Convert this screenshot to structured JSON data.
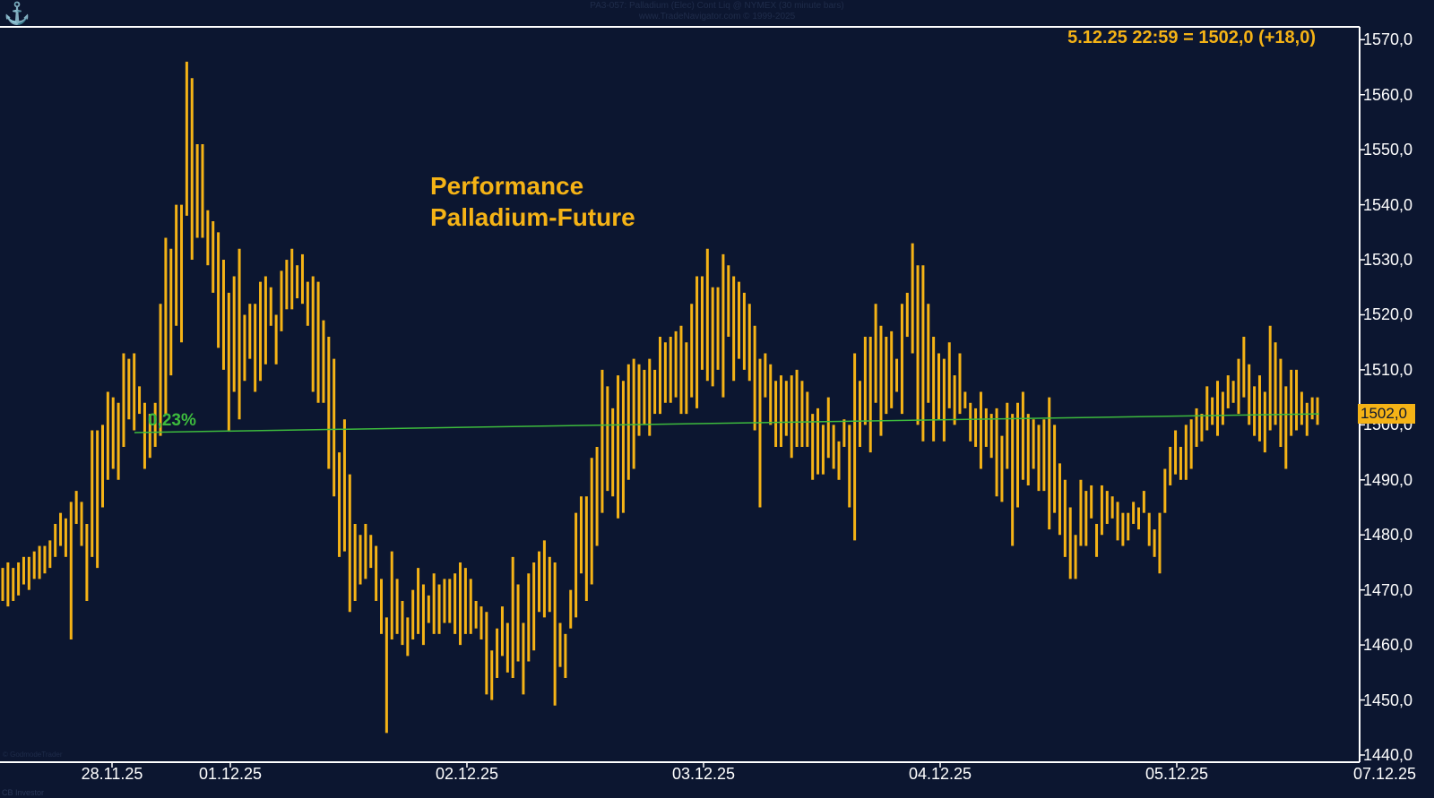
{
  "header": {
    "line1": "PA3-057:  Palladium (Elec) Cont Liq @ NYMEX  (30 minute bars)",
    "line2": "www.TradeNavigator.com © 1999-2025"
  },
  "overlay": {
    "last_price_text": "5.12.25 22:59 = 1502,0 (+18,0)",
    "title_line1": "Performance",
    "title_line2": "Palladium-Future",
    "performance_label": "0,23%",
    "last_tag": "1502,0"
  },
  "footer": {
    "copyright": "© GodmodeTrader",
    "brand": "CB Investor"
  },
  "colors": {
    "background": "#0c1630",
    "bars": "#f5b316",
    "trend": "#3dbb3d",
    "axis": "#ffffff"
  },
  "icons": {
    "logo": "anchor-icon"
  },
  "chart_data": {
    "type": "ohlc",
    "series": "Palladium (Elec) Cont Liq @ NYMEX",
    "interval": "30 minute bars",
    "ylim": [
      1440,
      1572
    ],
    "y_ticks": [
      "1440,0",
      "1450,0",
      "1460,0",
      "1470,0",
      "1480,0",
      "1490,0",
      "1500,0",
      "1510,0",
      "1520,0",
      "1530,0",
      "1540,0",
      "1550,0",
      "1560,0",
      "1570,0"
    ],
    "x_ticks": [
      "28.11.25",
      "01.12.25",
      "02.12.25",
      "03.12.25",
      "04.12.25",
      "05.12.25",
      "07.12.25"
    ],
    "grid": false,
    "performance_line": {
      "from_price": 1498.6,
      "to_price": 1502.0,
      "label": "0,23%"
    },
    "bar_high_low": [
      [
        1468,
        1474
      ],
      [
        1467,
        1475
      ],
      [
        1468,
        1474
      ],
      [
        1469,
        1475
      ],
      [
        1471,
        1476
      ],
      [
        1470,
        1476
      ],
      [
        1472,
        1477
      ],
      [
        1472,
        1478
      ],
      [
        1473,
        1478
      ],
      [
        1474,
        1479
      ],
      [
        1476,
        1482
      ],
      [
        1478,
        1484
      ],
      [
        1476,
        1483
      ],
      [
        1461,
        1486
      ],
      [
        1482,
        1488
      ],
      [
        1478,
        1486
      ],
      [
        1468,
        1482
      ],
      [
        1476,
        1499
      ],
      [
        1474,
        1499
      ],
      [
        1485,
        1500
      ],
      [
        1490,
        1506
      ],
      [
        1492,
        1505
      ],
      [
        1490,
        1504
      ],
      [
        1496,
        1513
      ],
      [
        1501,
        1512
      ],
      [
        1499,
        1513
      ],
      [
        1502,
        1507
      ],
      [
        1492,
        1504
      ],
      [
        1494,
        1502
      ],
      [
        1496,
        1504
      ],
      [
        1498,
        1522
      ],
      [
        1502,
        1534
      ],
      [
        1509,
        1532
      ],
      [
        1518,
        1540
      ],
      [
        1515,
        1540
      ],
      [
        1538,
        1566
      ],
      [
        1530,
        1563
      ],
      [
        1534,
        1551
      ],
      [
        1534,
        1551
      ],
      [
        1529,
        1539
      ],
      [
        1524,
        1537
      ],
      [
        1514,
        1535
      ],
      [
        1510,
        1530
      ],
      [
        1499,
        1524
      ],
      [
        1506,
        1527
      ],
      [
        1501,
        1532
      ],
      [
        1508,
        1520
      ],
      [
        1512,
        1522
      ],
      [
        1506,
        1522
      ],
      [
        1508,
        1526
      ],
      [
        1511,
        1527
      ],
      [
        1518,
        1525
      ],
      [
        1511,
        1520
      ],
      [
        1517,
        1528
      ],
      [
        1521,
        1530
      ],
      [
        1521,
        1532
      ],
      [
        1523,
        1529
      ],
      [
        1522,
        1531
      ],
      [
        1518,
        1526
      ],
      [
        1506,
        1527
      ],
      [
        1504,
        1526
      ],
      [
        1504,
        1519
      ],
      [
        1492,
        1516
      ],
      [
        1487,
        1512
      ],
      [
        1476,
        1495
      ],
      [
        1477,
        1501
      ],
      [
        1466,
        1491
      ],
      [
        1468,
        1482
      ],
      [
        1471,
        1480
      ],
      [
        1472,
        1482
      ],
      [
        1474,
        1480
      ],
      [
        1468,
        1478
      ],
      [
        1462,
        1472
      ],
      [
        1444,
        1465
      ],
      [
        1461,
        1477
      ],
      [
        1462,
        1472
      ],
      [
        1460,
        1468
      ],
      [
        1458,
        1465
      ],
      [
        1461,
        1470
      ],
      [
        1462,
        1474
      ],
      [
        1460,
        1471
      ],
      [
        1464,
        1469
      ],
      [
        1462,
        1473
      ],
      [
        1462,
        1471
      ],
      [
        1464,
        1472
      ],
      [
        1464,
        1472
      ],
      [
        1462,
        1473
      ],
      [
        1460,
        1475
      ],
      [
        1462,
        1474
      ],
      [
        1462,
        1472
      ],
      [
        1463,
        1468
      ],
      [
        1461,
        1467
      ],
      [
        1451,
        1466
      ],
      [
        1450,
        1459
      ],
      [
        1454,
        1463
      ],
      [
        1458,
        1467
      ],
      [
        1455,
        1464
      ],
      [
        1454,
        1476
      ],
      [
        1457,
        1471
      ],
      [
        1451,
        1464
      ],
      [
        1457,
        1473
      ],
      [
        1459,
        1475
      ],
      [
        1466,
        1477
      ],
      [
        1465,
        1479
      ],
      [
        1466,
        1476
      ],
      [
        1449,
        1475
      ],
      [
        1456,
        1464
      ],
      [
        1454,
        1462
      ],
      [
        1463,
        1470
      ],
      [
        1465,
        1484
      ],
      [
        1473,
        1487
      ],
      [
        1468,
        1487
      ],
      [
        1471,
        1494
      ],
      [
        1478,
        1496
      ],
      [
        1484,
        1510
      ],
      [
        1488,
        1507
      ],
      [
        1487,
        1503
      ],
      [
        1483,
        1509
      ],
      [
        1484,
        1508
      ],
      [
        1490,
        1511
      ],
      [
        1492,
        1512
      ],
      [
        1498,
        1511
      ],
      [
        1500,
        1510
      ],
      [
        1498,
        1512
      ],
      [
        1502,
        1510
      ],
      [
        1502,
        1516
      ],
      [
        1504,
        1515
      ],
      [
        1504,
        1516
      ],
      [
        1505,
        1517
      ],
      [
        1502,
        1518
      ],
      [
        1502,
        1515
      ],
      [
        1505,
        1522
      ],
      [
        1503,
        1527
      ],
      [
        1510,
        1527
      ],
      [
        1508,
        1532
      ],
      [
        1507,
        1525
      ],
      [
        1510,
        1525
      ],
      [
        1505,
        1531
      ],
      [
        1516,
        1529
      ],
      [
        1508,
        1527
      ],
      [
        1512,
        1526
      ],
      [
        1510,
        1524
      ],
      [
        1508,
        1522
      ],
      [
        1499,
        1518
      ],
      [
        1485,
        1512
      ],
      [
        1505,
        1513
      ],
      [
        1500,
        1511
      ],
      [
        1496,
        1508
      ],
      [
        1496,
        1509
      ],
      [
        1498,
        1508
      ],
      [
        1494,
        1509
      ],
      [
        1496,
        1510
      ],
      [
        1496,
        1508
      ],
      [
        1496,
        1506
      ],
      [
        1490,
        1502
      ],
      [
        1491,
        1503
      ],
      [
        1491,
        1500
      ],
      [
        1494,
        1505
      ],
      [
        1492,
        1500
      ],
      [
        1490,
        1497
      ],
      [
        1496,
        1501
      ],
      [
        1485,
        1500
      ],
      [
        1479,
        1513
      ],
      [
        1496,
        1508
      ],
      [
        1500,
        1516
      ],
      [
        1495,
        1516
      ],
      [
        1504,
        1522
      ],
      [
        1498,
        1518
      ],
      [
        1502,
        1516
      ],
      [
        1503,
        1517
      ],
      [
        1506,
        1512
      ],
      [
        1502,
        1522
      ],
      [
        1516,
        1524
      ],
      [
        1513,
        1533
      ],
      [
        1500,
        1529
      ],
      [
        1497,
        1529
      ],
      [
        1504,
        1522
      ],
      [
        1497,
        1516
      ],
      [
        1501,
        1513
      ],
      [
        1497,
        1512
      ],
      [
        1503,
        1515
      ],
      [
        1500,
        1509
      ],
      [
        1502,
        1513
      ],
      [
        1503,
        1506
      ],
      [
        1497,
        1504
      ],
      [
        1496,
        1503
      ],
      [
        1492,
        1506
      ],
      [
        1496,
        1503
      ],
      [
        1494,
        1502
      ],
      [
        1487,
        1503
      ],
      [
        1486,
        1498
      ],
      [
        1492,
        1504
      ],
      [
        1478,
        1502
      ],
      [
        1485,
        1504
      ],
      [
        1490,
        1506
      ],
      [
        1489,
        1502
      ],
      [
        1492,
        1501
      ],
      [
        1488,
        1500
      ],
      [
        1488,
        1501
      ],
      [
        1481,
        1505
      ],
      [
        1484,
        1500
      ],
      [
        1480,
        1493
      ],
      [
        1476,
        1490
      ],
      [
        1472,
        1485
      ],
      [
        1472,
        1480
      ],
      [
        1478,
        1490
      ],
      [
        1478,
        1488
      ],
      [
        1483,
        1489
      ],
      [
        1476,
        1482
      ],
      [
        1480,
        1489
      ],
      [
        1482,
        1488
      ],
      [
        1483,
        1487
      ],
      [
        1479,
        1486
      ],
      [
        1478,
        1484
      ],
      [
        1479,
        1484
      ],
      [
        1482,
        1486
      ],
      [
        1481,
        1485
      ],
      [
        1484,
        1488
      ],
      [
        1478,
        1484
      ],
      [
        1476,
        1481
      ],
      [
        1473,
        1484
      ],
      [
        1484,
        1492
      ],
      [
        1489,
        1496
      ],
      [
        1491,
        1499
      ],
      [
        1490,
        1496
      ],
      [
        1490,
        1500
      ],
      [
        1492,
        1501
      ],
      [
        1496,
        1503
      ],
      [
        1497,
        1502
      ],
      [
        1499,
        1507
      ],
      [
        1500,
        1505
      ],
      [
        1498,
        1508
      ],
      [
        1500,
        1506
      ],
      [
        1503,
        1509
      ],
      [
        1504,
        1508
      ],
      [
        1502,
        1512
      ],
      [
        1505,
        1516
      ],
      [
        1500,
        1511
      ],
      [
        1498,
        1507
      ],
      [
        1497,
        1509
      ],
      [
        1495,
        1506
      ],
      [
        1499,
        1518
      ],
      [
        1500,
        1515
      ],
      [
        1496,
        1512
      ],
      [
        1492,
        1507
      ],
      [
        1498,
        1510
      ],
      [
        1499,
        1510
      ],
      [
        1500,
        1506
      ],
      [
        1498,
        1504
      ],
      [
        1501,
        1505
      ],
      [
        1500,
        1505
      ]
    ]
  }
}
